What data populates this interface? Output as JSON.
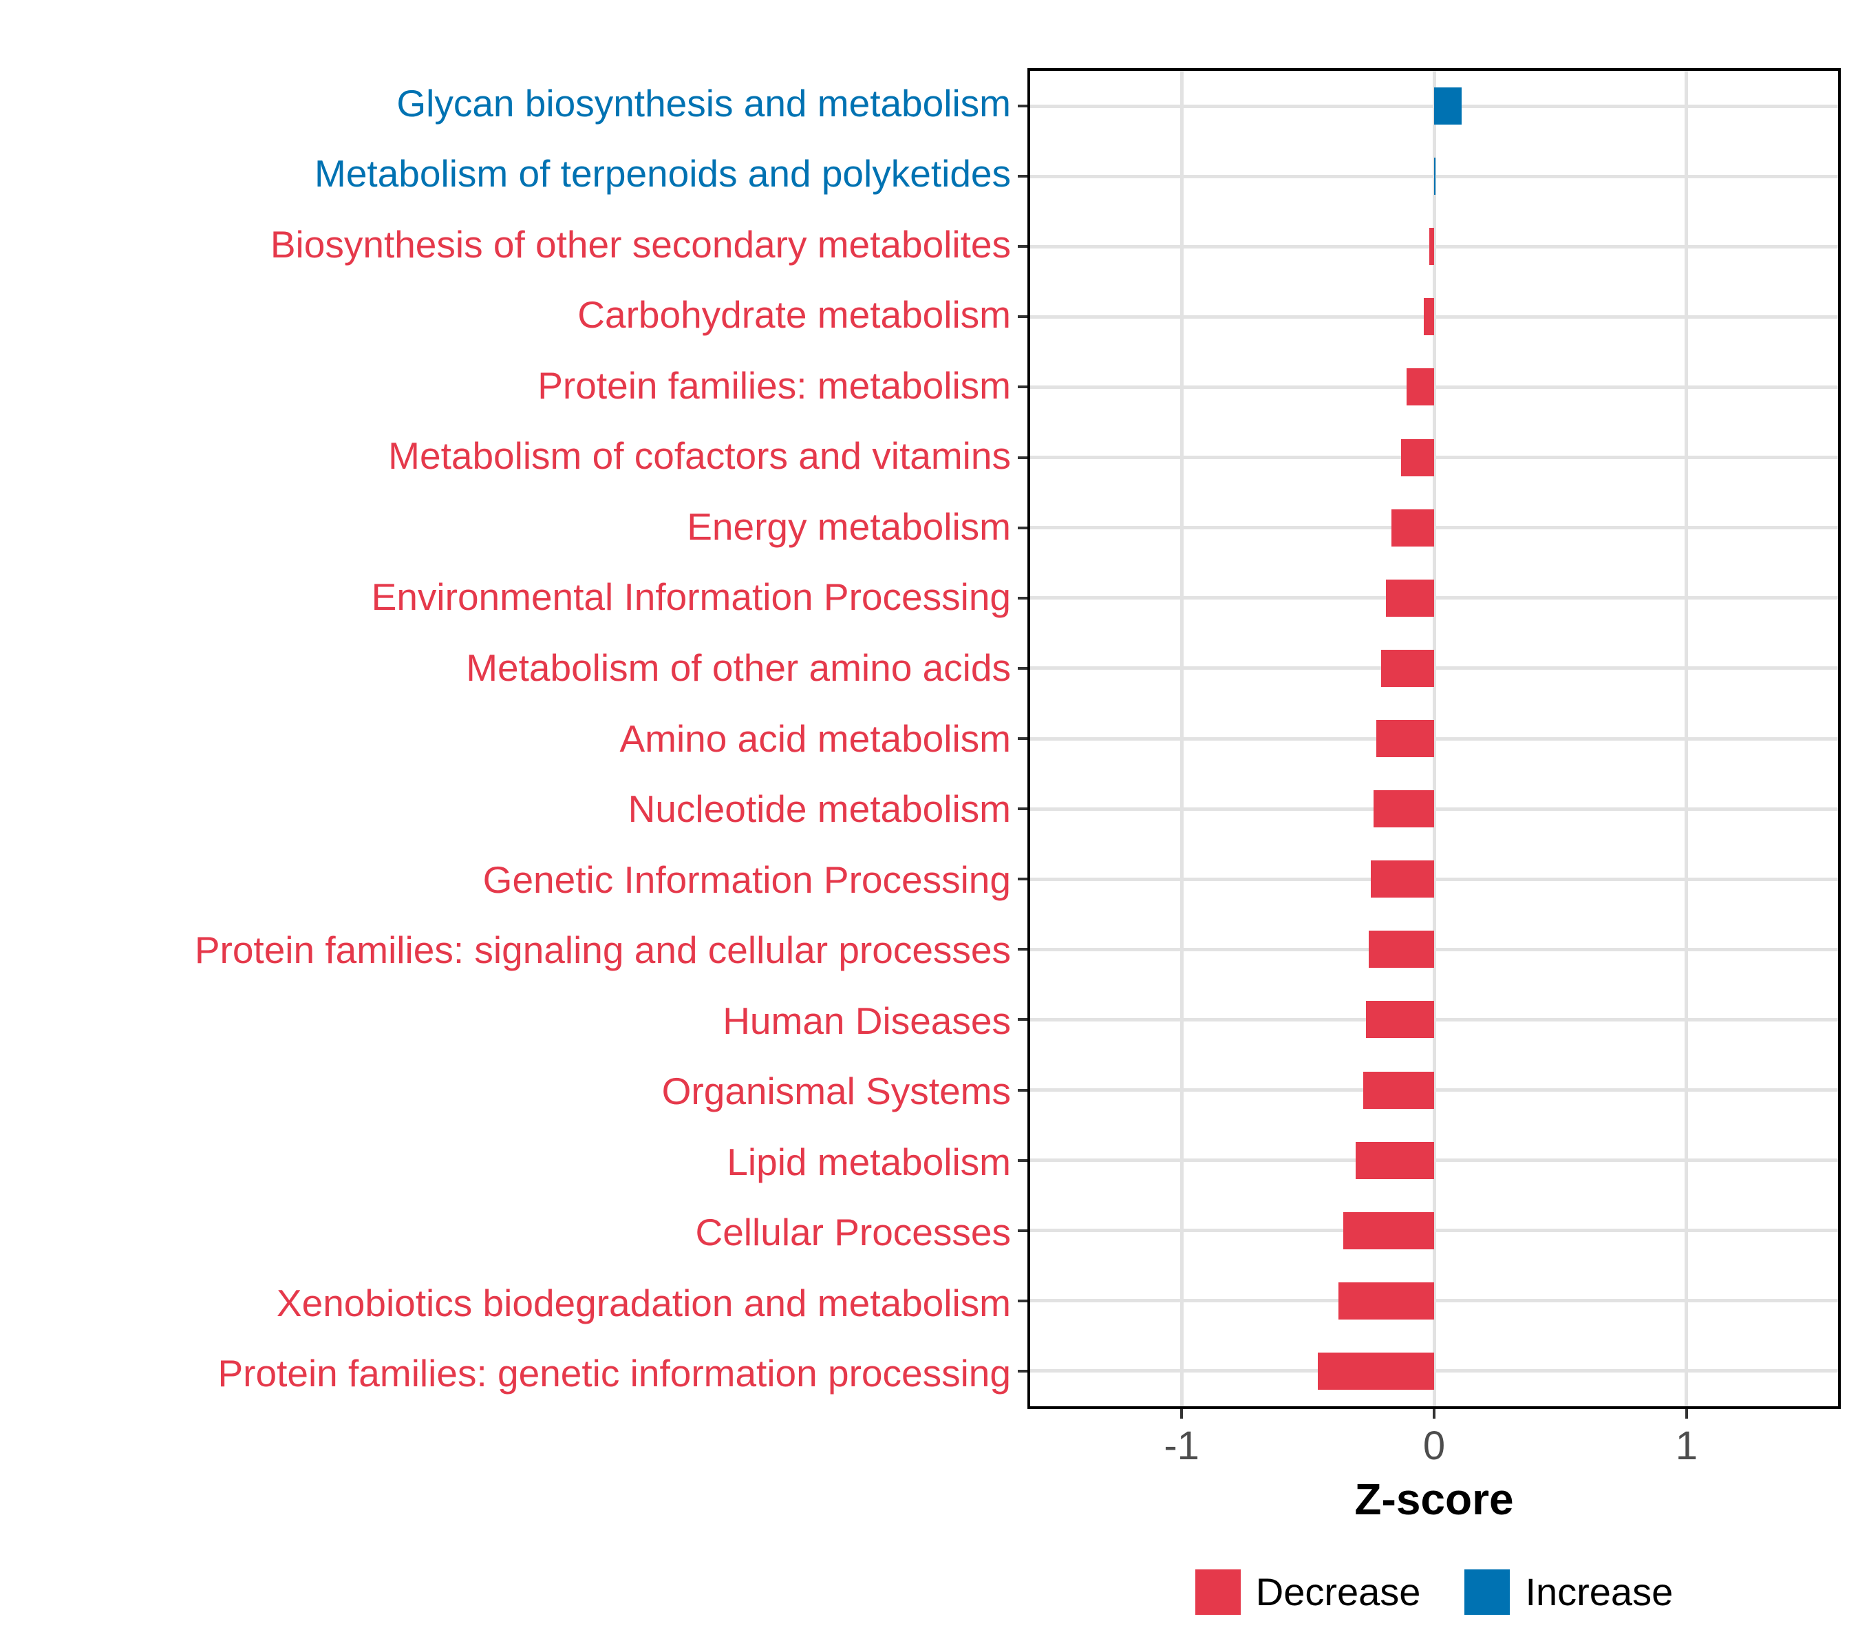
{
  "chart_data": {
    "type": "bar",
    "orientation": "horizontal",
    "title": "",
    "xlabel": "Z-score",
    "ylabel": "",
    "xlim": [
      -1.6,
      1.6
    ],
    "x_ticks": [
      -1,
      0,
      1
    ],
    "x_tick_labels": [
      "-1",
      "0",
      "1"
    ],
    "grid": {
      "color": "#e2e2e2",
      "horizontal": "one-per-category",
      "vertical_at_ticks": true
    },
    "categories": [
      "Glycan biosynthesis and metabolism",
      "Metabolism of terpenoids and polyketides",
      "Biosynthesis of other secondary metabolites",
      "Carbohydrate metabolism",
      "Protein families: metabolism",
      "Metabolism of cofactors and vitamins",
      "Energy metabolism",
      "Environmental Information Processing",
      "Metabolism of other amino acids",
      "Amino acid metabolism",
      "Nucleotide metabolism",
      "Genetic Information Processing",
      "Protein families: signaling and cellular processes",
      "Human Diseases",
      "Organismal Systems",
      "Lipid metabolism",
      "Cellular Processes",
      "Xenobiotics biodegradation and metabolism",
      "Protein families: genetic information processing"
    ],
    "values": [
      0.11,
      0.005,
      -0.02,
      -0.04,
      -0.11,
      -0.13,
      -0.17,
      -0.19,
      -0.21,
      -0.23,
      -0.24,
      -0.25,
      -0.26,
      -0.27,
      -0.28,
      -0.31,
      -0.36,
      -0.38,
      -0.46
    ],
    "directions": [
      "Increase",
      "Increase",
      "Decrease",
      "Decrease",
      "Decrease",
      "Decrease",
      "Decrease",
      "Decrease",
      "Decrease",
      "Decrease",
      "Decrease",
      "Decrease",
      "Decrease",
      "Decrease",
      "Decrease",
      "Decrease",
      "Decrease",
      "Decrease",
      "Decrease"
    ],
    "colors": {
      "Decrease": "#e5394b",
      "Increase": "#0072b2"
    },
    "legend": {
      "position": "bottom",
      "entries": [
        {
          "label": "Decrease",
          "color": "#e5394b"
        },
        {
          "label": "Increase",
          "color": "#0072b2"
        }
      ]
    },
    "axis_style": {
      "tick_color": "#333333",
      "tick_label_color": "#4d4d4d",
      "panel_border_color": "#000000"
    }
  }
}
